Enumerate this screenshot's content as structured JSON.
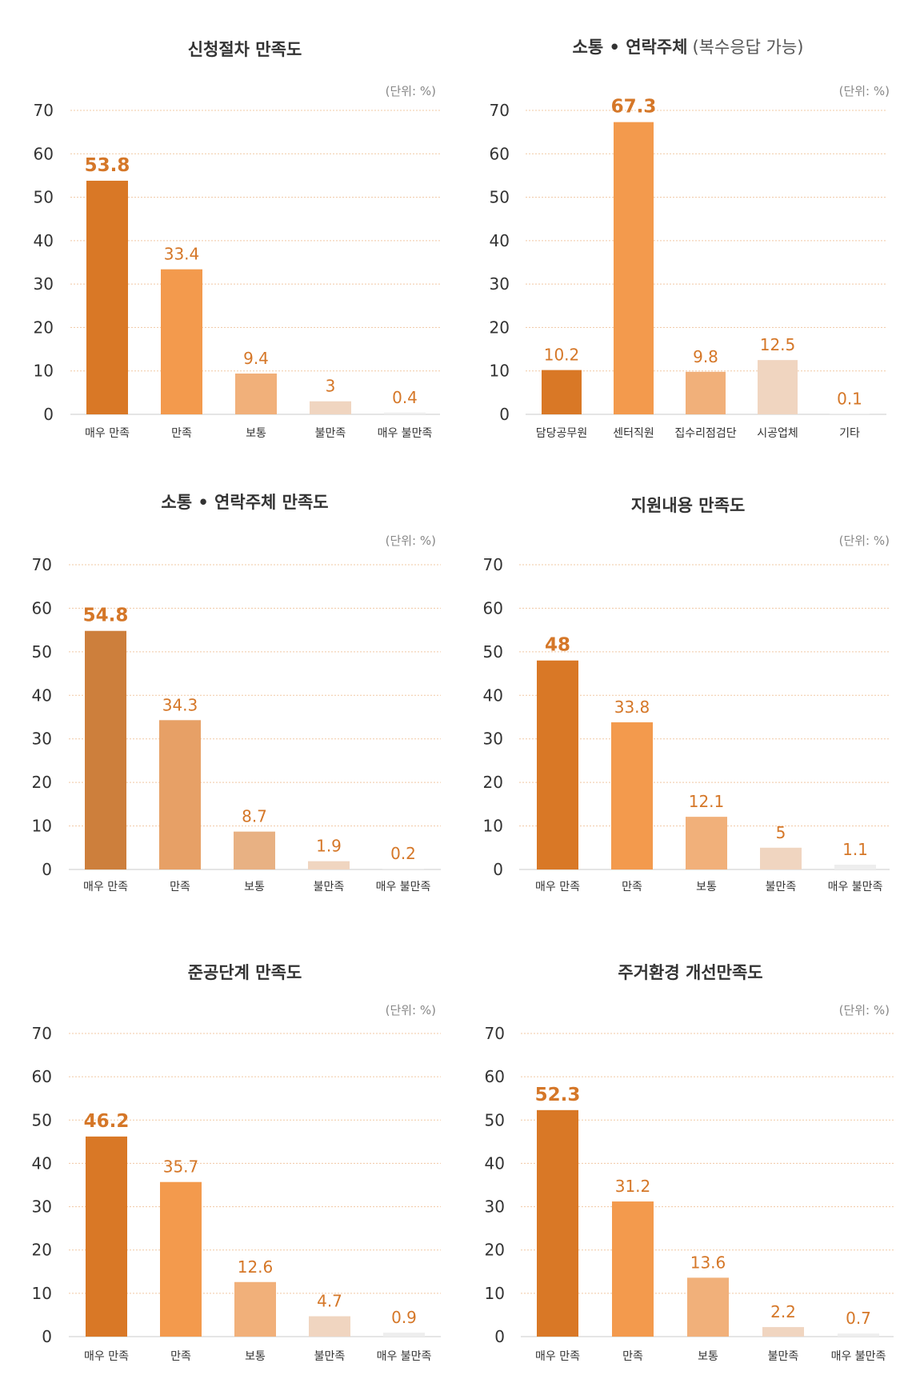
{
  "colors": {
    "grid": "#f1c8a3",
    "baseline": "#e5e5e5",
    "value_label": "#d57728",
    "text": "#333333",
    "unit": "#888888"
  },
  "chart_data": [
    {
      "type": "bar",
      "title": "신청절차 만족도",
      "title_extra": "",
      "unit": "(단위: %)",
      "categories": [
        "매우 만족",
        "만족",
        "보통",
        "불만족",
        "매우 불만족"
      ],
      "values": [
        53.8,
        33.4,
        9.4,
        3,
        0.4
      ],
      "value_labels": [
        "53.8",
        "33.4",
        "9.4",
        "3",
        "0.4"
      ],
      "bar_colors": [
        "#d97826",
        "#f39a4d",
        "#f1b07a",
        "#f0d5c0",
        "#eeeeee"
      ],
      "yticks": [
        0,
        10,
        20,
        30,
        40,
        50,
        60,
        70
      ],
      "ylim": [
        0,
        70
      ]
    },
    {
      "type": "bar",
      "title": "소통 • 연락주체",
      "title_extra": "(복수응답 가능)",
      "unit": "(단위: %)",
      "categories": [
        "담당공무원",
        "센터직원",
        "집수리점검단",
        "시공업체",
        "기타"
      ],
      "values": [
        10.2,
        67.3,
        9.8,
        12.5,
        0.1
      ],
      "value_labels": [
        "10.2",
        "67.3",
        "9.8",
        "12.5",
        "0.1"
      ],
      "bar_colors": [
        "#d97826",
        "#f39a4d",
        "#f1b07a",
        "#f0d5c0",
        "#eeeeee"
      ],
      "yticks": [
        0,
        10,
        20,
        30,
        40,
        50,
        60,
        70
      ],
      "ylim": [
        0,
        70
      ]
    },
    {
      "type": "bar",
      "title": "소통 • 연락주체 만족도",
      "title_extra": "",
      "unit": "(단위: %)",
      "categories": [
        "매우 만족",
        "만족",
        "보통",
        "불만족",
        "매우 불만족"
      ],
      "values": [
        54.8,
        34.3,
        8.7,
        1.9,
        0.2
      ],
      "value_labels": [
        "54.8",
        "34.3",
        "8.7",
        "1.9",
        "0.2"
      ],
      "bar_colors": [
        "#cd7f3c",
        "#e7a066",
        "#e8b183",
        "#f0d5c0",
        "#eeeeee"
      ],
      "yticks": [
        0,
        10,
        20,
        30,
        40,
        50,
        60,
        70
      ],
      "ylim": [
        0,
        70
      ]
    },
    {
      "type": "bar",
      "title": "지원내용 만족도",
      "title_extra": "",
      "unit": "(단위: %)",
      "categories": [
        "매우 만족",
        "만족",
        "보통",
        "불만족",
        "매우 불만족"
      ],
      "values": [
        48,
        33.8,
        12.1,
        5,
        1.1
      ],
      "value_labels": [
        "48",
        "33.8",
        "12.1",
        "5",
        "1.1"
      ],
      "bar_colors": [
        "#d97826",
        "#f39a4d",
        "#f1b07a",
        "#f0d5c0",
        "#eeeeee"
      ],
      "yticks": [
        0,
        10,
        20,
        30,
        40,
        50,
        60,
        70
      ],
      "ylim": [
        0,
        70
      ]
    },
    {
      "type": "bar",
      "title": "준공단계 만족도",
      "title_extra": "",
      "unit": "(단위: %)",
      "categories": [
        "매우 만족",
        "만족",
        "보통",
        "불만족",
        "매우 불만족"
      ],
      "values": [
        46.2,
        35.7,
        12.6,
        4.7,
        0.9
      ],
      "value_labels": [
        "46.2",
        "35.7",
        "12.6",
        "4.7",
        "0.9"
      ],
      "bar_colors": [
        "#d97826",
        "#f39a4d",
        "#f1b07a",
        "#f0d5c0",
        "#eeeeee"
      ],
      "yticks": [
        0,
        10,
        20,
        30,
        40,
        50,
        60,
        70
      ],
      "ylim": [
        0,
        70
      ]
    },
    {
      "type": "bar",
      "title": "주거환경 개선만족도",
      "title_extra": "",
      "unit": "(단위: %)",
      "categories": [
        "매우 만족",
        "만족",
        "보통",
        "불만족",
        "매우 불만족"
      ],
      "values": [
        52.3,
        31.2,
        13.6,
        2.2,
        0.7
      ],
      "value_labels": [
        "52.3",
        "31.2",
        "13.6",
        "2.2",
        "0.7"
      ],
      "bar_colors": [
        "#d97826",
        "#f39a4d",
        "#f1b07a",
        "#f0d5c0",
        "#eeeeee"
      ],
      "yticks": [
        0,
        10,
        20,
        30,
        40,
        50,
        60,
        70
      ],
      "ylim": [
        0,
        70
      ]
    }
  ]
}
